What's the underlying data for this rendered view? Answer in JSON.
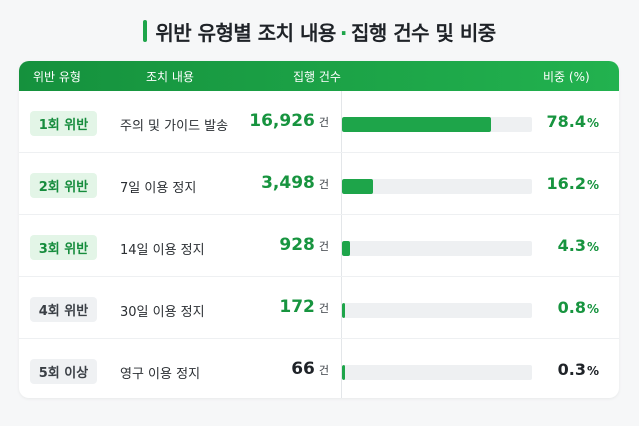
{
  "title": {
    "main": "위반 유형별 조치 내용",
    "dot": "·",
    "sub": "집행 건수 및 비중"
  },
  "header": {
    "type": "위반 유형",
    "action": "조치 내용",
    "count": "집행 건수",
    "ratio": "비중 (%)"
  },
  "unit": "건",
  "pct": "%",
  "rows": [
    {
      "badge": "1회 위반",
      "badge_style": "green",
      "action": "주의 및 가이드 발송",
      "count": "16,926",
      "ratio": "78.4",
      "share": 0.784,
      "highlight": true
    },
    {
      "badge": "2회 위반",
      "badge_style": "green",
      "action": "7일 이용 정지",
      "count": "3,498",
      "ratio": "16.2",
      "share": 0.162,
      "highlight": true
    },
    {
      "badge": "3회 위반",
      "badge_style": "green",
      "action": "14일 이용 정지",
      "count": "928",
      "ratio": "4.3",
      "share": 0.043,
      "highlight": true
    },
    {
      "badge": "4회 위반",
      "badge_style": "gray",
      "action": "30일 이용 정지",
      "count": "172",
      "ratio": "0.8",
      "share": 0.008,
      "highlight": true
    },
    {
      "badge": "5회 이상",
      "badge_style": "gray",
      "action": "영구 이용 정지",
      "count": "66",
      "ratio": "0.3",
      "share": 0.003,
      "highlight": false
    }
  ],
  "colors": {
    "accent": "#1ea54a",
    "text_dark": "#1f2328"
  }
}
